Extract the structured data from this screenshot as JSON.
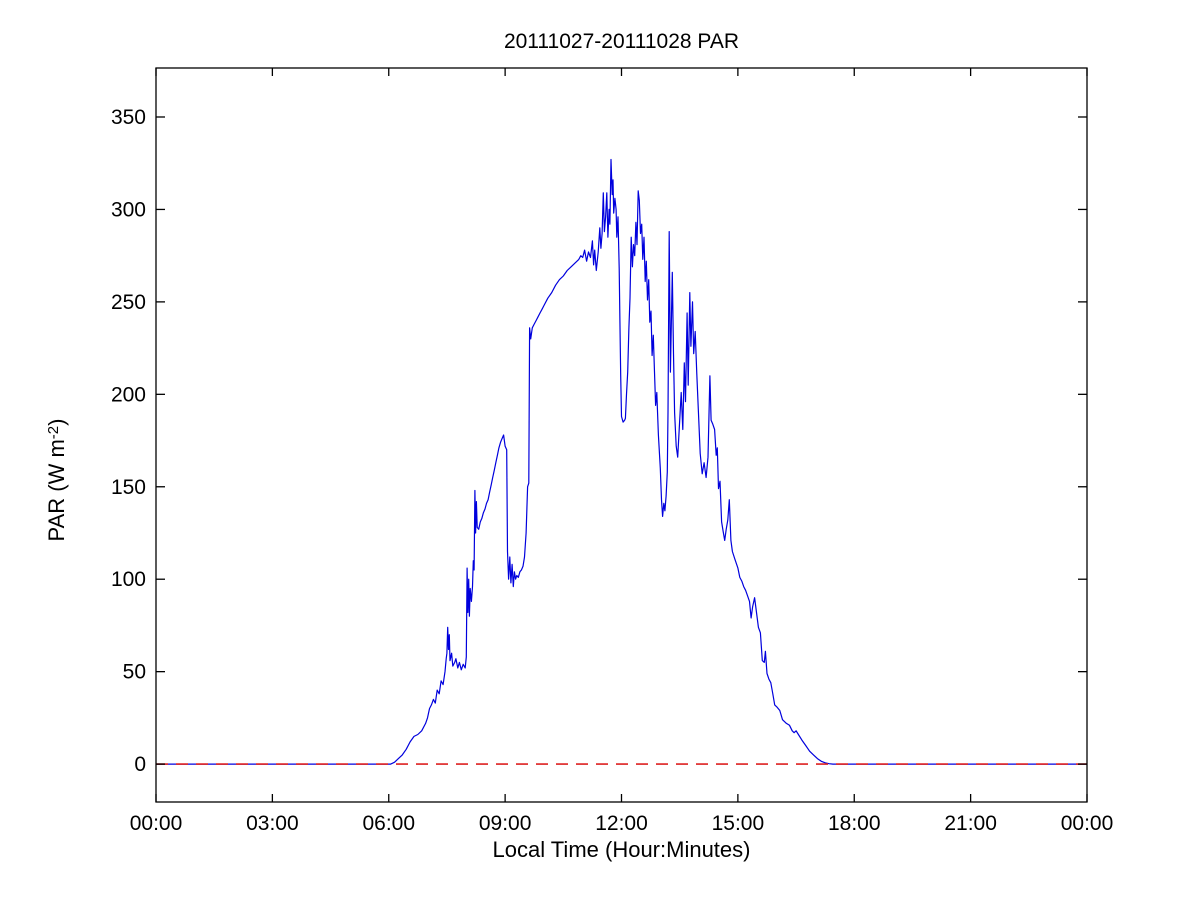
{
  "chart_data": {
    "type": "line",
    "title": "20111027-20111028 PAR",
    "xlabel": "Local Time (Hour:Minutes)",
    "ylabel": "PAR (W m-2)",
    "ylabel_parts": {
      "pre": "PAR (W m",
      "sup": "-2",
      "post": ")"
    },
    "grid": false,
    "legend": "none",
    "xlim": [
      0,
      24
    ],
    "ylim": [
      -20.5,
      376.5
    ],
    "x_tick_hours": [
      0,
      3,
      6,
      9,
      12,
      15,
      18,
      21,
      24
    ],
    "x_tick_labels": [
      "00:00",
      "03:00",
      "06:00",
      "09:00",
      "12:00",
      "15:00",
      "18:00",
      "21:00",
      "00:00"
    ],
    "y_tick_values": [
      0,
      50,
      100,
      150,
      200,
      250,
      300,
      350
    ],
    "y_tick_labels": [
      "0",
      "50",
      "100",
      "150",
      "200",
      "250",
      "300",
      "350"
    ],
    "colors": {
      "par_line": "#0000dd",
      "zero_line": "#dd2222",
      "axis": "#000000"
    },
    "series": [
      {
        "name": "PAR",
        "color": "#0000dd",
        "style": "solid",
        "points": [
          [
            0,
            0
          ],
          [
            6.05,
            0
          ],
          [
            6.15,
            1
          ],
          [
            6.25,
            3
          ],
          [
            6.35,
            5
          ],
          [
            6.45,
            8
          ],
          [
            6.55,
            12
          ],
          [
            6.65,
            15
          ],
          [
            6.75,
            16
          ],
          [
            6.85,
            18
          ],
          [
            6.95,
            22
          ],
          [
            7.0,
            25
          ],
          [
            7.05,
            30
          ],
          [
            7.1,
            32
          ],
          [
            7.15,
            35
          ],
          [
            7.2,
            33
          ],
          [
            7.25,
            40
          ],
          [
            7.3,
            38
          ],
          [
            7.35,
            45
          ],
          [
            7.4,
            43
          ],
          [
            7.45,
            50
          ],
          [
            7.48,
            57
          ],
          [
            7.5,
            60
          ],
          [
            7.52,
            74
          ],
          [
            7.54,
            62
          ],
          [
            7.56,
            70
          ],
          [
            7.58,
            56
          ],
          [
            7.62,
            60
          ],
          [
            7.65,
            53
          ],
          [
            7.7,
            55
          ],
          [
            7.73,
            57
          ],
          [
            7.78,
            52
          ],
          [
            7.82,
            55
          ],
          [
            7.87,
            51
          ],
          [
            7.92,
            54
          ],
          [
            7.97,
            52
          ],
          [
            8.0,
            58
          ],
          [
            8.02,
            106
          ],
          [
            8.04,
            82
          ],
          [
            8.06,
            100
          ],
          [
            8.08,
            80
          ],
          [
            8.1,
            95
          ],
          [
            8.13,
            88
          ],
          [
            8.16,
            96
          ],
          [
            8.18,
            110
          ],
          [
            8.2,
            105
          ],
          [
            8.22,
            148
          ],
          [
            8.24,
            125
          ],
          [
            8.26,
            142
          ],
          [
            8.28,
            128
          ],
          [
            8.32,
            127
          ],
          [
            8.36,
            131
          ],
          [
            8.4,
            133
          ],
          [
            8.44,
            136
          ],
          [
            8.48,
            138
          ],
          [
            8.52,
            141
          ],
          [
            8.56,
            143
          ],
          [
            8.6,
            147
          ],
          [
            8.64,
            151
          ],
          [
            8.68,
            155
          ],
          [
            8.72,
            159
          ],
          [
            8.76,
            163
          ],
          [
            8.8,
            167
          ],
          [
            8.84,
            171
          ],
          [
            8.88,
            174
          ],
          [
            8.92,
            176
          ],
          [
            8.96,
            178
          ],
          [
            9.0,
            172
          ],
          [
            9.04,
            170
          ],
          [
            9.06,
            115
          ],
          [
            9.09,
            100
          ],
          [
            9.12,
            112
          ],
          [
            9.15,
            98
          ],
          [
            9.18,
            108
          ],
          [
            9.21,
            96
          ],
          [
            9.24,
            104
          ],
          [
            9.27,
            100
          ],
          [
            9.3,
            102
          ],
          [
            9.34,
            101
          ],
          [
            9.38,
            104
          ],
          [
            9.42,
            105
          ],
          [
            9.46,
            107
          ],
          [
            9.5,
            112
          ],
          [
            9.54,
            125
          ],
          [
            9.58,
            150
          ],
          [
            9.61,
            152
          ],
          [
            9.63,
            236
          ],
          [
            9.66,
            230
          ],
          [
            9.7,
            236
          ],
          [
            9.75,
            238
          ],
          [
            9.8,
            240
          ],
          [
            9.85,
            242
          ],
          [
            9.9,
            244
          ],
          [
            9.95,
            246
          ],
          [
            10.0,
            248
          ],
          [
            10.1,
            252
          ],
          [
            10.2,
            255
          ],
          [
            10.3,
            259
          ],
          [
            10.4,
            262
          ],
          [
            10.5,
            264
          ],
          [
            10.6,
            267
          ],
          [
            10.7,
            269
          ],
          [
            10.8,
            271
          ],
          [
            10.9,
            273
          ],
          [
            10.95,
            275
          ],
          [
            11.0,
            274
          ],
          [
            11.05,
            278
          ],
          [
            11.1,
            272
          ],
          [
            11.15,
            277
          ],
          [
            11.2,
            274
          ],
          [
            11.25,
            283
          ],
          [
            11.28,
            270
          ],
          [
            11.31,
            278
          ],
          [
            11.35,
            267
          ],
          [
            11.4,
            277
          ],
          [
            11.44,
            290
          ],
          [
            11.47,
            279
          ],
          [
            11.5,
            287
          ],
          [
            11.53,
            309
          ],
          [
            11.56,
            288
          ],
          [
            11.59,
            296
          ],
          [
            11.62,
            309
          ],
          [
            11.65,
            285
          ],
          [
            11.68,
            300
          ],
          [
            11.7,
            292
          ],
          [
            11.73,
            327
          ],
          [
            11.76,
            308
          ],
          [
            11.78,
            316
          ],
          [
            11.8,
            298
          ],
          [
            11.83,
            306
          ],
          [
            11.86,
            300
          ],
          [
            11.88,
            285
          ],
          [
            11.91,
            296
          ],
          [
            11.94,
            268
          ],
          [
            11.96,
            240
          ],
          [
            11.98,
            210
          ],
          [
            12.0,
            188
          ],
          [
            12.04,
            185
          ],
          [
            12.08,
            186
          ],
          [
            12.1,
            187
          ],
          [
            12.13,
            200
          ],
          [
            12.16,
            212
          ],
          [
            12.19,
            236
          ],
          [
            12.22,
            252
          ],
          [
            12.25,
            285
          ],
          [
            12.28,
            269
          ],
          [
            12.31,
            281
          ],
          [
            12.34,
            275
          ],
          [
            12.37,
            293
          ],
          [
            12.4,
            281
          ],
          [
            12.43,
            310
          ],
          [
            12.46,
            305
          ],
          [
            12.49,
            287
          ],
          [
            12.52,
            292
          ],
          [
            12.55,
            273
          ],
          [
            12.58,
            285
          ],
          [
            12.61,
            261
          ],
          [
            12.64,
            272
          ],
          [
            12.67,
            251
          ],
          [
            12.7,
            262
          ],
          [
            12.73,
            239
          ],
          [
            12.76,
            245
          ],
          [
            12.79,
            221
          ],
          [
            12.82,
            232
          ],
          [
            12.85,
            212
          ],
          [
            12.88,
            194
          ],
          [
            12.91,
            201
          ],
          [
            12.95,
            178
          ],
          [
            13.0,
            160
          ],
          [
            13.03,
            143
          ],
          [
            13.06,
            134
          ],
          [
            13.09,
            141
          ],
          [
            13.12,
            137
          ],
          [
            13.15,
            145
          ],
          [
            13.18,
            158
          ],
          [
            13.2,
            190
          ],
          [
            13.23,
            288
          ],
          [
            13.26,
            212
          ],
          [
            13.29,
            243
          ],
          [
            13.31,
            266
          ],
          [
            13.34,
            222
          ],
          [
            13.37,
            190
          ],
          [
            13.41,
            172
          ],
          [
            13.45,
            166
          ],
          [
            13.5,
            186
          ],
          [
            13.54,
            201
          ],
          [
            13.58,
            181
          ],
          [
            13.62,
            217
          ],
          [
            13.65,
            196
          ],
          [
            13.69,
            244
          ],
          [
            13.72,
            205
          ],
          [
            13.76,
            255
          ],
          [
            13.79,
            226
          ],
          [
            13.83,
            250
          ],
          [
            13.86,
            222
          ],
          [
            13.9,
            234
          ],
          [
            13.94,
            211
          ],
          [
            13.98,
            192
          ],
          [
            14.03,
            168
          ],
          [
            14.08,
            157
          ],
          [
            14.13,
            163
          ],
          [
            14.18,
            155
          ],
          [
            14.23,
            166
          ],
          [
            14.28,
            210
          ],
          [
            14.31,
            186
          ],
          [
            14.35,
            184
          ],
          [
            14.4,
            181
          ],
          [
            14.44,
            167
          ],
          [
            14.47,
            171
          ],
          [
            14.5,
            149
          ],
          [
            14.54,
            153
          ],
          [
            14.58,
            131
          ],
          [
            14.62,
            126
          ],
          [
            14.66,
            121
          ],
          [
            14.7,
            127
          ],
          [
            14.74,
            132
          ],
          [
            14.78,
            143
          ],
          [
            14.82,
            121
          ],
          [
            14.86,
            115
          ],
          [
            14.92,
            111
          ],
          [
            15.0,
            106
          ],
          [
            15.05,
            101
          ],
          [
            15.1,
            99
          ],
          [
            15.15,
            96
          ],
          [
            15.2,
            94
          ],
          [
            15.25,
            91
          ],
          [
            15.3,
            88
          ],
          [
            15.34,
            79
          ],
          [
            15.38,
            85
          ],
          [
            15.43,
            90
          ],
          [
            15.48,
            82
          ],
          [
            15.53,
            74
          ],
          [
            15.58,
            71
          ],
          [
            15.63,
            56
          ],
          [
            15.68,
            55
          ],
          [
            15.71,
            61
          ],
          [
            15.75,
            49
          ],
          [
            15.8,
            46
          ],
          [
            15.85,
            44
          ],
          [
            15.9,
            38
          ],
          [
            15.95,
            32
          ],
          [
            16.0,
            31
          ],
          [
            16.08,
            29
          ],
          [
            16.15,
            24
          ],
          [
            16.25,
            22
          ],
          [
            16.33,
            21
          ],
          [
            16.4,
            18
          ],
          [
            16.45,
            17
          ],
          [
            16.5,
            18
          ],
          [
            16.56,
            16
          ],
          [
            16.65,
            13
          ],
          [
            16.75,
            10
          ],
          [
            16.85,
            7
          ],
          [
            16.95,
            5
          ],
          [
            17.05,
            3
          ],
          [
            17.15,
            1.5
          ],
          [
            17.25,
            0.7
          ],
          [
            17.35,
            0.2
          ],
          [
            17.45,
            0
          ],
          [
            24,
            0
          ]
        ]
      },
      {
        "name": "zero-reference",
        "color": "#dd2222",
        "style": "dashed",
        "points": [
          [
            0,
            0
          ],
          [
            24,
            0
          ]
        ]
      }
    ]
  }
}
